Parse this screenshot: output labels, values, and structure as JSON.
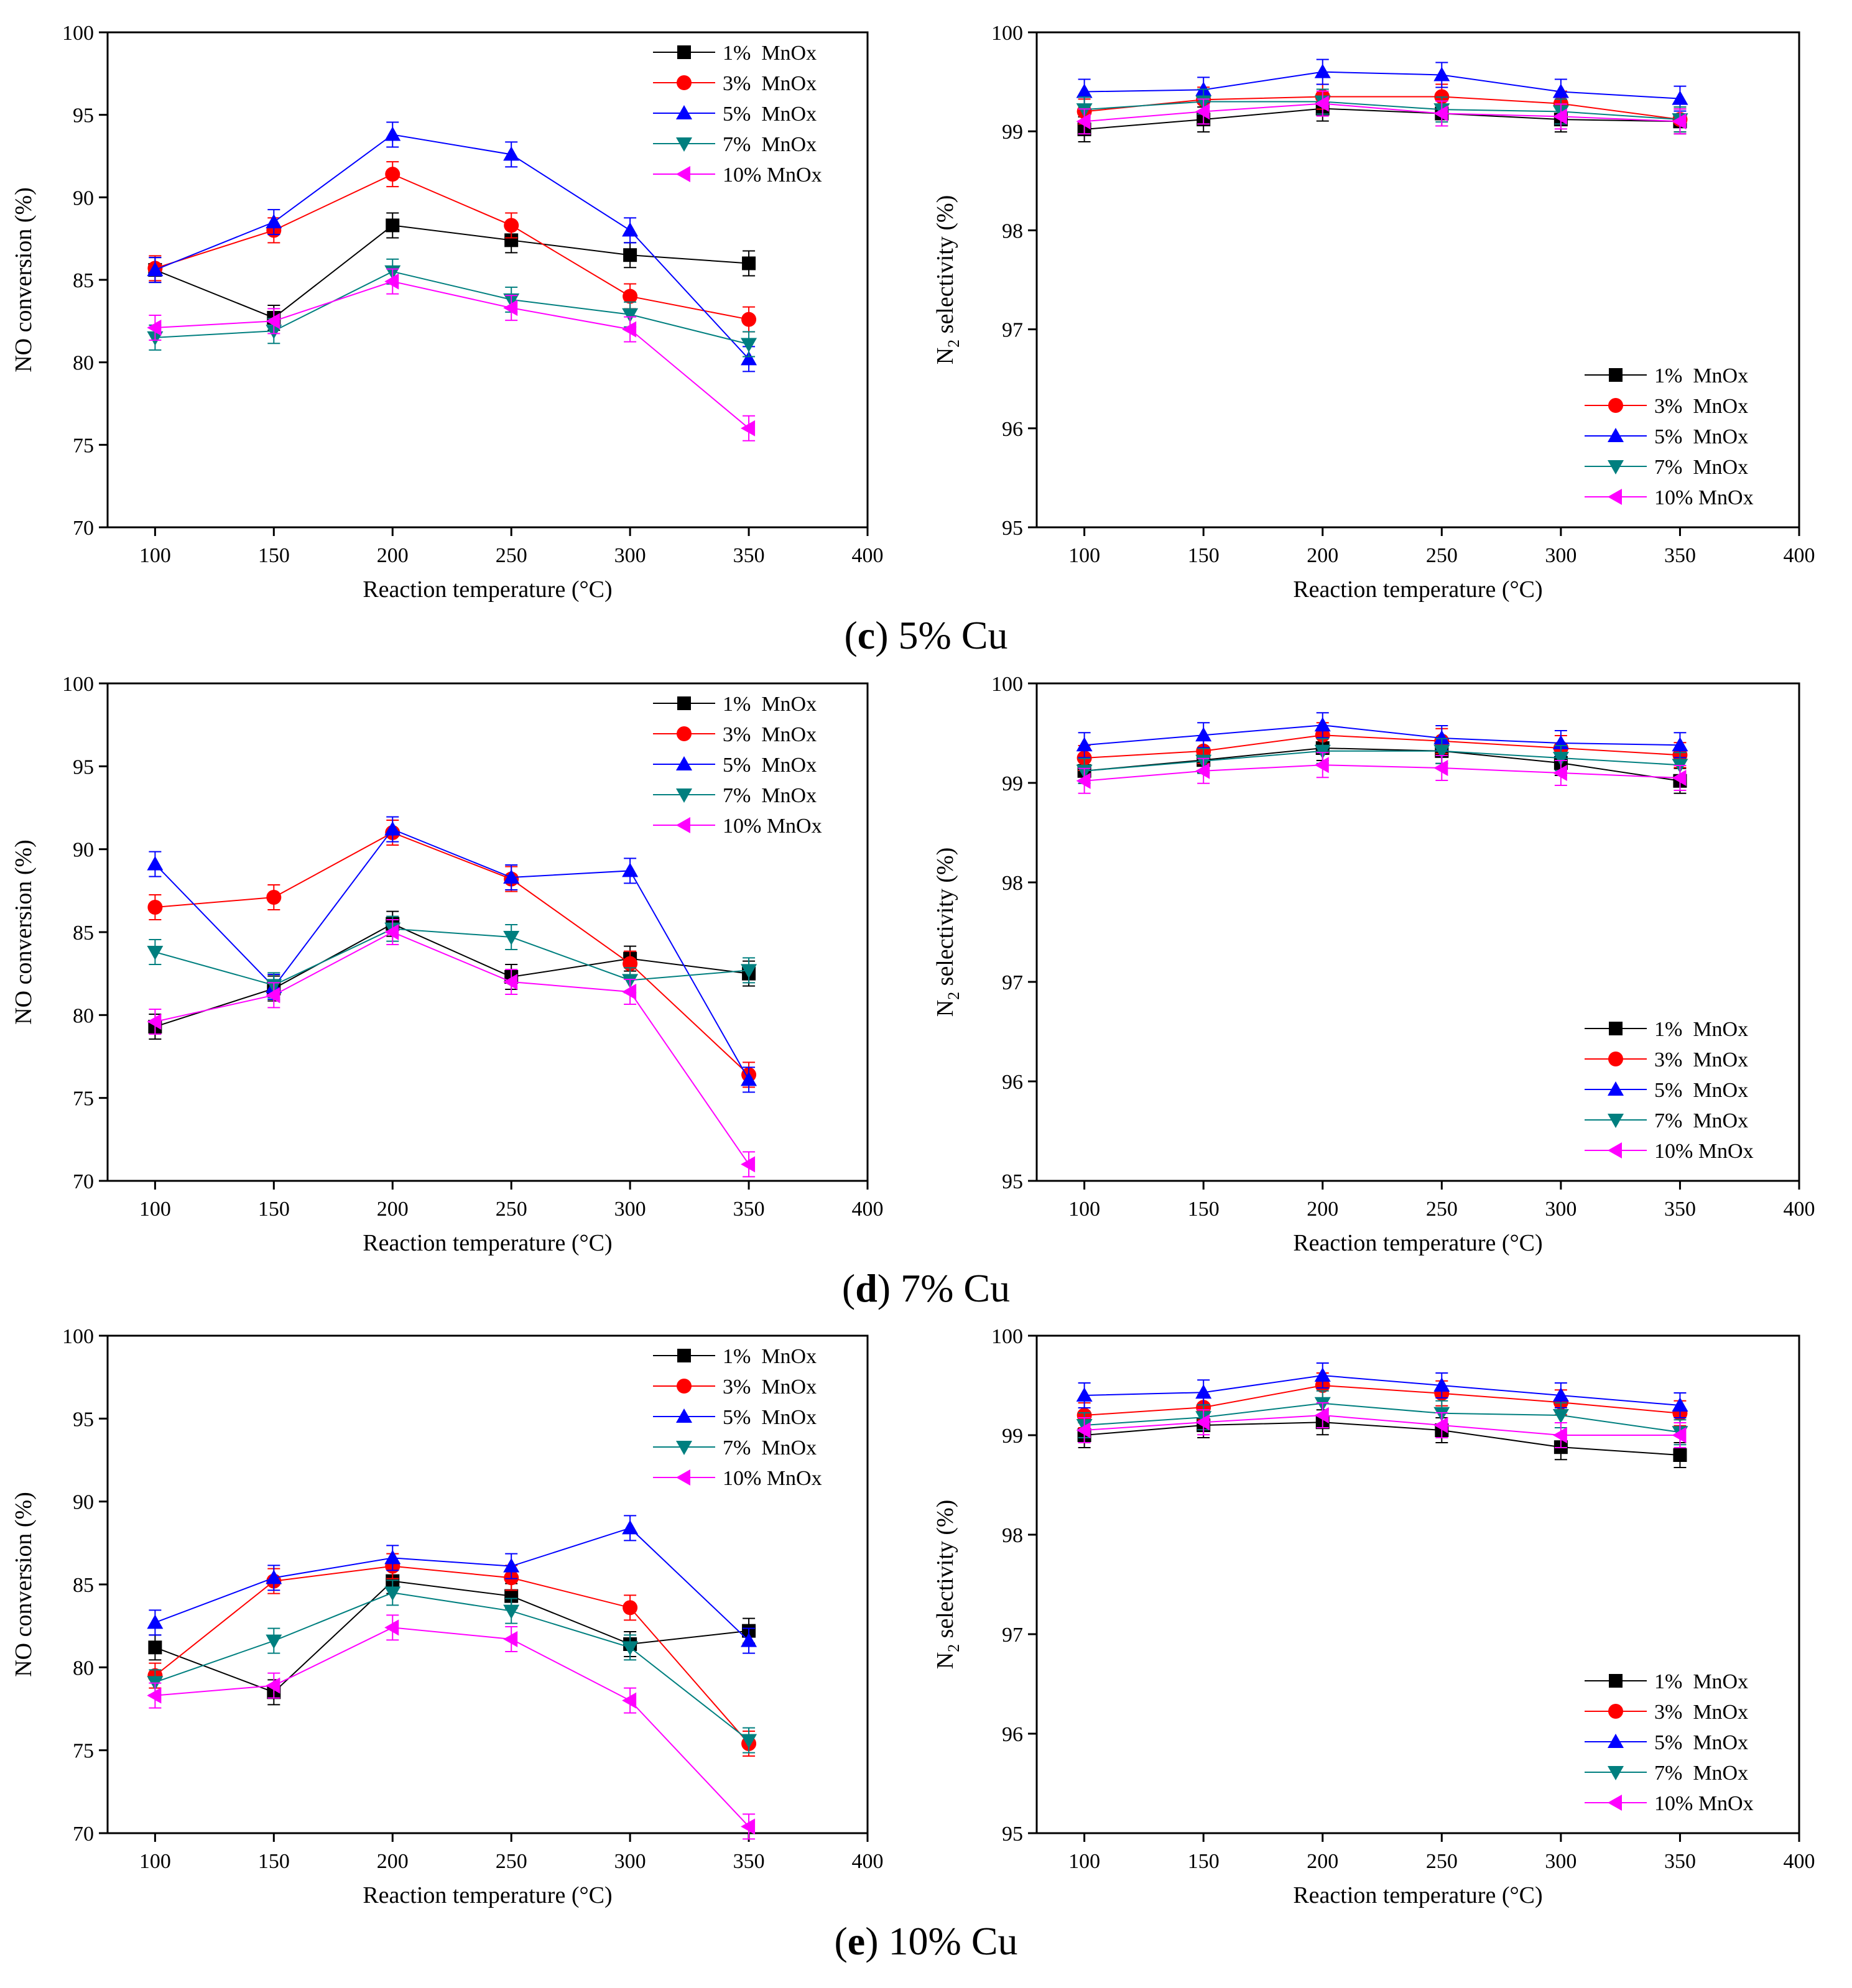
{
  "colors": {
    "1% MnOx": "#000000",
    "3% MnOx": "#ff0000",
    "5% MnOx": "#0000ff",
    "7% MnOx": "#007f7f",
    "10% MnOx": "#ff00ff"
  },
  "panels": [
    {
      "label": "c",
      "caption_text": "5% Cu"
    },
    {
      "label": "d",
      "caption_text": "7% Cu"
    },
    {
      "label": "e",
      "caption_text": "10% Cu"
    }
  ],
  "chart_data": [
    {
      "type": "line",
      "panel": "c",
      "title": "",
      "legend_position": "top-right",
      "xlabel": "Reaction temperature (°C)",
      "ylabel": "NO conversion (%)",
      "xlim": [
        80,
        400
      ],
      "ylim": [
        70,
        100
      ],
      "xticks": [
        100,
        150,
        200,
        250,
        300,
        350,
        400
      ],
      "yticks": [
        70,
        75,
        80,
        85,
        90,
        95,
        100
      ],
      "x": [
        100,
        150,
        200,
        250,
        300,
        350
      ],
      "series": [
        {
          "name": "1%  MnOx",
          "marker": "square",
          "values": [
            85.6,
            82.7,
            88.3,
            87.4,
            86.5,
            86.0
          ]
        },
        {
          "name": "3%  MnOx",
          "marker": "circle",
          "values": [
            85.7,
            88.0,
            91.4,
            88.3,
            84.0,
            82.6
          ]
        },
        {
          "name": "5%  MnOx",
          "marker": "triangle-up",
          "values": [
            85.6,
            88.5,
            93.8,
            92.6,
            88.0,
            80.2
          ]
        },
        {
          "name": "7%  MnOx",
          "marker": "triangle-down",
          "values": [
            81.5,
            81.9,
            85.5,
            83.8,
            82.9,
            81.1
          ]
        },
        {
          "name": "10% MnOx",
          "marker": "triangle-left",
          "values": [
            82.1,
            82.5,
            84.9,
            83.3,
            82.0,
            76.0
          ]
        }
      ]
    },
    {
      "type": "line",
      "panel": "c",
      "title": "",
      "legend_position": "bottom-right",
      "xlabel": "Reaction temperature (°C)",
      "ylabel": "N2 selectivity (%)",
      "xlim": [
        80,
        400
      ],
      "ylim": [
        95,
        100
      ],
      "xticks": [
        100,
        150,
        200,
        250,
        300,
        350,
        400
      ],
      "yticks": [
        95,
        96,
        97,
        98,
        99,
        100
      ],
      "x": [
        100,
        150,
        200,
        250,
        300,
        350
      ],
      "series": [
        {
          "name": "1%  MnOx",
          "marker": "square",
          "values": [
            99.02,
            99.12,
            99.23,
            99.18,
            99.12,
            99.1
          ]
        },
        {
          "name": "3%  MnOx",
          "marker": "circle",
          "values": [
            99.2,
            99.32,
            99.35,
            99.35,
            99.28,
            99.12
          ]
        },
        {
          "name": "5%  MnOx",
          "marker": "triangle-up",
          "values": [
            99.4,
            99.42,
            99.6,
            99.57,
            99.4,
            99.33
          ]
        },
        {
          "name": "7%  MnOx",
          "marker": "triangle-down",
          "values": [
            99.22,
            99.3,
            99.3,
            99.22,
            99.2,
            99.12
          ]
        },
        {
          "name": "10% MnOx",
          "marker": "triangle-left",
          "values": [
            99.1,
            99.2,
            99.28,
            99.18,
            99.15,
            99.1
          ]
        }
      ]
    },
    {
      "type": "line",
      "panel": "d",
      "title": "",
      "legend_position": "top-right",
      "xlabel": "Reaction temperature (°C)",
      "ylabel": "NO conversion (%)",
      "xlim": [
        80,
        400
      ],
      "ylim": [
        70,
        100
      ],
      "xticks": [
        100,
        150,
        200,
        250,
        300,
        350,
        400
      ],
      "yticks": [
        70,
        75,
        80,
        85,
        90,
        95,
        100
      ],
      "x": [
        100,
        150,
        200,
        250,
        300,
        350
      ],
      "series": [
        {
          "name": "1%  MnOx",
          "marker": "square",
          "values": [
            79.3,
            81.6,
            85.5,
            82.3,
            83.4,
            82.5
          ]
        },
        {
          "name": "3%  MnOx",
          "marker": "circle",
          "values": [
            86.5,
            87.1,
            91.0,
            88.2,
            83.1,
            76.4
          ]
        },
        {
          "name": "5%  MnOx",
          "marker": "triangle-up",
          "values": [
            89.1,
            81.7,
            91.2,
            88.3,
            88.7,
            76.1
          ]
        },
        {
          "name": "7%  MnOx",
          "marker": "triangle-down",
          "values": [
            83.8,
            81.8,
            85.2,
            84.7,
            82.1,
            82.7
          ]
        },
        {
          "name": "10% MnOx",
          "marker": "triangle-left",
          "values": [
            79.6,
            81.2,
            85.0,
            82.0,
            81.4,
            71.0
          ]
        }
      ]
    },
    {
      "type": "line",
      "panel": "d",
      "title": "",
      "legend_position": "bottom-right",
      "xlabel": "Reaction temperature (°C)",
      "ylabel": "N2 selectivity (%)",
      "xlim": [
        80,
        400
      ],
      "ylim": [
        95,
        100
      ],
      "xticks": [
        100,
        150,
        200,
        250,
        300,
        350,
        400
      ],
      "yticks": [
        95,
        96,
        97,
        98,
        99,
        100
      ],
      "x": [
        100,
        150,
        200,
        250,
        300,
        350
      ],
      "series": [
        {
          "name": "1%  MnOx",
          "marker": "square",
          "values": [
            99.12,
            99.23,
            99.35,
            99.32,
            99.2,
            99.02
          ]
        },
        {
          "name": "3%  MnOx",
          "marker": "circle",
          "values": [
            99.25,
            99.32,
            99.48,
            99.42,
            99.35,
            99.28
          ]
        },
        {
          "name": "5%  MnOx",
          "marker": "triangle-up",
          "values": [
            99.38,
            99.48,
            99.58,
            99.45,
            99.4,
            99.38
          ]
        },
        {
          "name": "7%  MnOx",
          "marker": "triangle-down",
          "values": [
            99.12,
            99.22,
            99.32,
            99.32,
            99.25,
            99.18
          ]
        },
        {
          "name": "10% MnOx",
          "marker": "triangle-left",
          "values": [
            99.02,
            99.12,
            99.18,
            99.15,
            99.1,
            99.05
          ]
        }
      ]
    },
    {
      "type": "line",
      "panel": "e",
      "title": "",
      "legend_position": "top-right",
      "xlabel": "Reaction temperature (°C)",
      "ylabel": "NO conversion (%)",
      "xlim": [
        80,
        400
      ],
      "ylim": [
        70,
        100
      ],
      "xticks": [
        100,
        150,
        200,
        250,
        300,
        350,
        400
      ],
      "yticks": [
        70,
        75,
        80,
        85,
        90,
        95,
        100
      ],
      "x": [
        100,
        150,
        200,
        250,
        300,
        350
      ],
      "series": [
        {
          "name": "1%  MnOx",
          "marker": "square",
          "values": [
            81.2,
            78.5,
            85.2,
            84.3,
            81.4,
            82.2
          ]
        },
        {
          "name": "3%  MnOx",
          "marker": "circle",
          "values": [
            79.5,
            85.2,
            86.1,
            85.4,
            83.6,
            75.4
          ]
        },
        {
          "name": "5%  MnOx",
          "marker": "triangle-up",
          "values": [
            82.7,
            85.4,
            86.6,
            86.1,
            88.4,
            81.6
          ]
        },
        {
          "name": "7%  MnOx",
          "marker": "triangle-down",
          "values": [
            79.1,
            81.6,
            84.5,
            83.4,
            81.2,
            75.6
          ]
        },
        {
          "name": "10% MnOx",
          "marker": "triangle-left",
          "values": [
            78.3,
            78.9,
            82.4,
            81.7,
            78.0,
            70.4
          ]
        }
      ]
    },
    {
      "type": "line",
      "panel": "e",
      "title": "",
      "legend_position": "bottom-right",
      "xlabel": "Reaction temperature (°C)",
      "ylabel": "N2 selectivity (%)",
      "xlim": [
        80,
        400
      ],
      "ylim": [
        95,
        100
      ],
      "xticks": [
        100,
        150,
        200,
        250,
        300,
        350,
        400
      ],
      "yticks": [
        95,
        96,
        97,
        98,
        99,
        100
      ],
      "x": [
        100,
        150,
        200,
        250,
        300,
        350
      ],
      "series": [
        {
          "name": "1%  MnOx",
          "marker": "square",
          "values": [
            99.0,
            99.1,
            99.13,
            99.05,
            98.88,
            98.8
          ]
        },
        {
          "name": "3%  MnOx",
          "marker": "circle",
          "values": [
            99.2,
            99.28,
            99.5,
            99.42,
            99.33,
            99.22
          ]
        },
        {
          "name": "5%  MnOx",
          "marker": "triangle-up",
          "values": [
            99.4,
            99.43,
            99.6,
            99.5,
            99.4,
            99.3
          ]
        },
        {
          "name": "7%  MnOx",
          "marker": "triangle-down",
          "values": [
            99.1,
            99.18,
            99.32,
            99.22,
            99.2,
            99.03
          ]
        },
        {
          "name": "10% MnOx",
          "marker": "triangle-left",
          "values": [
            99.05,
            99.13,
            99.2,
            99.1,
            99.0,
            99.0
          ]
        }
      ]
    }
  ]
}
